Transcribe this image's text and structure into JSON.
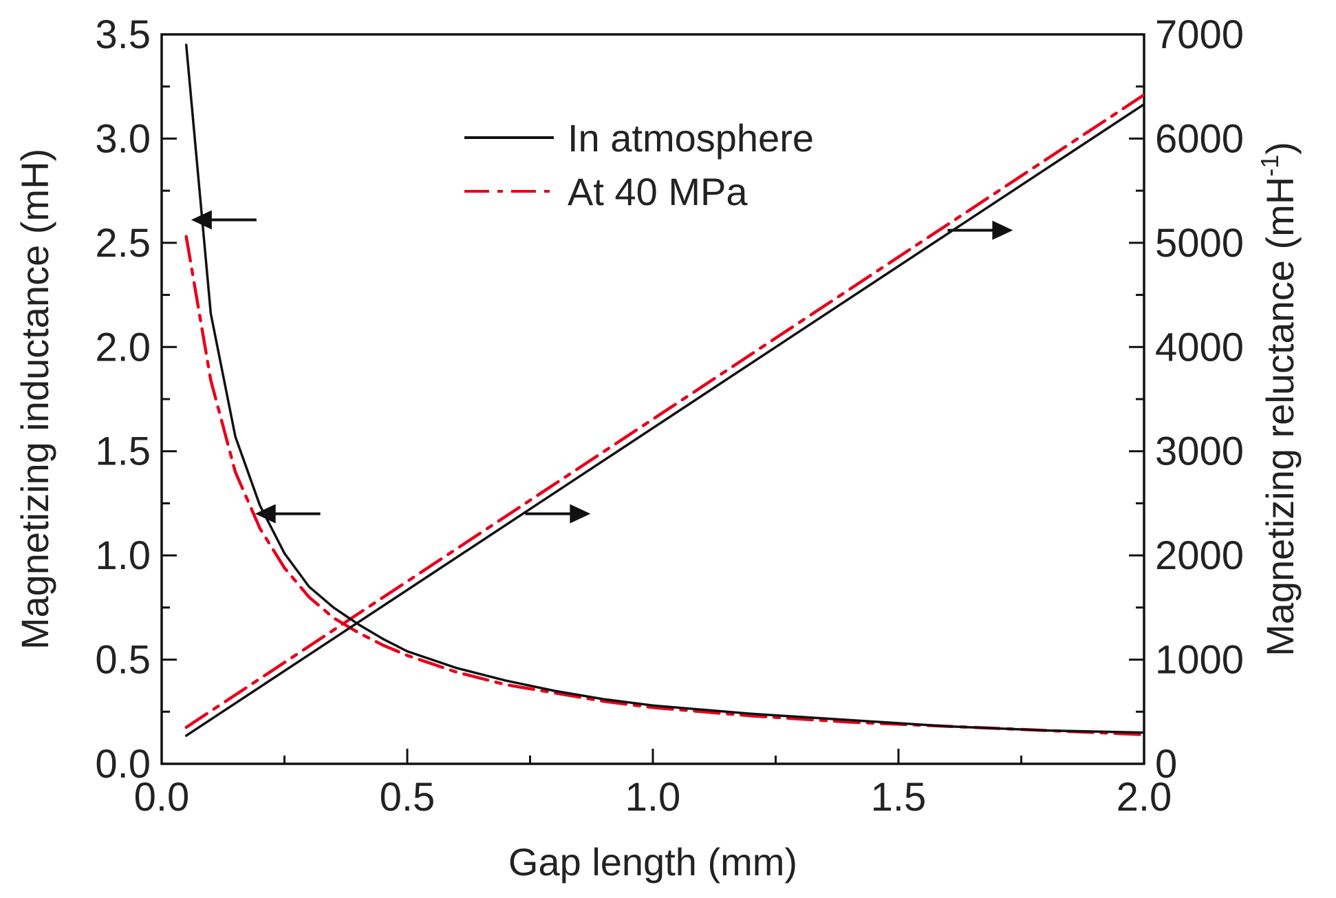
{
  "chart_data": {
    "type": "line",
    "xlabel": "Gap length (mm)",
    "ylabel_left": "Magnetizing inductance (mH)",
    "ylabel_right_base": "Magnetizing reluctance (mH",
    "ylabel_right_sup": "-1",
    "ylabel_right_close": ")",
    "xlim": [
      0.0,
      2.0
    ],
    "ylim_left": [
      0.0,
      3.5
    ],
    "ylim_right": [
      0,
      7000
    ],
    "xticks": [
      "0.0",
      "0.5",
      "1.0",
      "1.5",
      "2.0"
    ],
    "yticks_left": [
      "0.0",
      "0.5",
      "1.0",
      "1.5",
      "2.0",
      "2.5",
      "3.0",
      "3.5"
    ],
    "yticks_right": [
      "0",
      "1000",
      "2000",
      "3000",
      "4000",
      "5000",
      "6000",
      "7000"
    ],
    "legend": [
      {
        "label": "In atmosphere",
        "color": "#111111",
        "style": "solid"
      },
      {
        "label": "At 40 MPa",
        "color": "#e8001c",
        "style": "dashdot"
      }
    ],
    "legend_position": "top-center",
    "series": [
      {
        "name": "In atmosphere",
        "quantity": "inductance",
        "axis": "left",
        "color": "#111111",
        "style": "solid",
        "x": [
          0.05,
          0.1,
          0.15,
          0.2,
          0.25,
          0.3,
          0.35,
          0.4,
          0.45,
          0.5,
          0.6,
          0.7,
          0.8,
          0.9,
          1.0,
          1.2,
          1.4,
          1.6,
          1.8,
          2.0
        ],
        "y": [
          3.45,
          2.16,
          1.57,
          1.24,
          1.01,
          0.85,
          0.75,
          0.67,
          0.6,
          0.54,
          0.46,
          0.4,
          0.35,
          0.31,
          0.28,
          0.24,
          0.21,
          0.18,
          0.16,
          0.15
        ]
      },
      {
        "name": "At 40 MPa",
        "quantity": "inductance",
        "axis": "left",
        "color": "#e8001c",
        "style": "dashdot",
        "x": [
          0.05,
          0.1,
          0.15,
          0.2,
          0.25,
          0.3,
          0.35,
          0.4,
          0.45,
          0.5,
          0.6,
          0.7,
          0.8,
          0.9,
          1.0,
          1.2,
          1.4,
          1.6,
          1.8,
          2.0
        ],
        "y": [
          2.53,
          1.84,
          1.4,
          1.13,
          0.94,
          0.8,
          0.7,
          0.63,
          0.57,
          0.52,
          0.44,
          0.38,
          0.34,
          0.3,
          0.27,
          0.23,
          0.2,
          0.18,
          0.16,
          0.14
        ]
      },
      {
        "name": "In atmosphere",
        "quantity": "reluctance",
        "axis": "right",
        "color": "#111111",
        "style": "solid",
        "x": [
          0.05,
          2.0
        ],
        "y": [
          270,
          6330
        ]
      },
      {
        "name": "At 40 MPa",
        "quantity": "reluctance",
        "axis": "right",
        "color": "#e8001c",
        "style": "dashdot",
        "x": [
          0.05,
          2.0
        ],
        "y": [
          350,
          6420
        ]
      }
    ],
    "annotations": [
      {
        "name": "arrow-left-top",
        "direction": "left",
        "x": 0.06,
        "y_left": 2.61
      },
      {
        "name": "arrow-left-middle",
        "direction": "left",
        "x": 0.19,
        "y_left": 1.2
      },
      {
        "name": "arrow-right-middle",
        "direction": "right",
        "x": 0.74,
        "y_left": 1.2
      },
      {
        "name": "arrow-right-top",
        "direction": "right",
        "x": 1.6,
        "y_left": 2.56
      }
    ]
  }
}
